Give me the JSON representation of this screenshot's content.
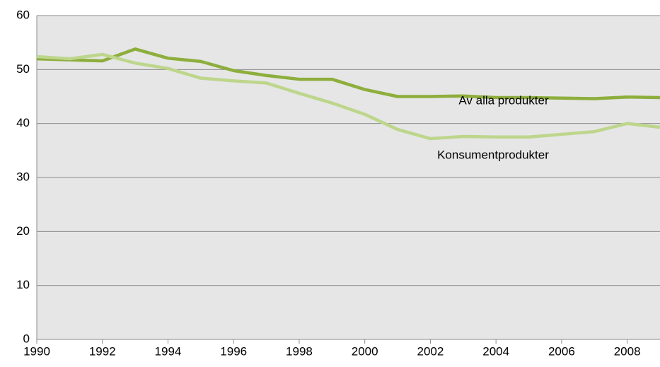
{
  "chart_data": {
    "type": "line",
    "x": [
      1990,
      1991,
      1992,
      1993,
      1994,
      1995,
      1996,
      1997,
      1998,
      1999,
      2000,
      2001,
      2002,
      2003,
      2004,
      2005,
      2006,
      2007,
      2008,
      2009
    ],
    "series": [
      {
        "name": "Av alla produkter",
        "color": "#8dae3c",
        "values": [
          52.0,
          51.8,
          51.6,
          53.8,
          52.1,
          51.5,
          49.8,
          48.9,
          48.2,
          48.2,
          46.3,
          45.0,
          45.0,
          45.1,
          44.8,
          44.8,
          44.7,
          44.6,
          44.9,
          44.8
        ]
      },
      {
        "name": "Konsumentprodukter",
        "color": "#bdd68c",
        "values": [
          52.4,
          52.0,
          52.8,
          51.2,
          50.2,
          48.4,
          47.9,
          47.5,
          45.6,
          43.8,
          41.7,
          38.9,
          37.2,
          37.6,
          37.5,
          37.5,
          38.0,
          38.5,
          40.0,
          39.3
        ]
      }
    ],
    "xlim": [
      1990,
      2009
    ],
    "xticks": [
      1990,
      1992,
      1994,
      1996,
      1998,
      2000,
      2002,
      2004,
      2006,
      2008
    ],
    "ylim": [
      0,
      60
    ],
    "yticks": [
      0,
      10,
      20,
      30,
      40,
      50,
      60
    ],
    "grid": true
  }
}
